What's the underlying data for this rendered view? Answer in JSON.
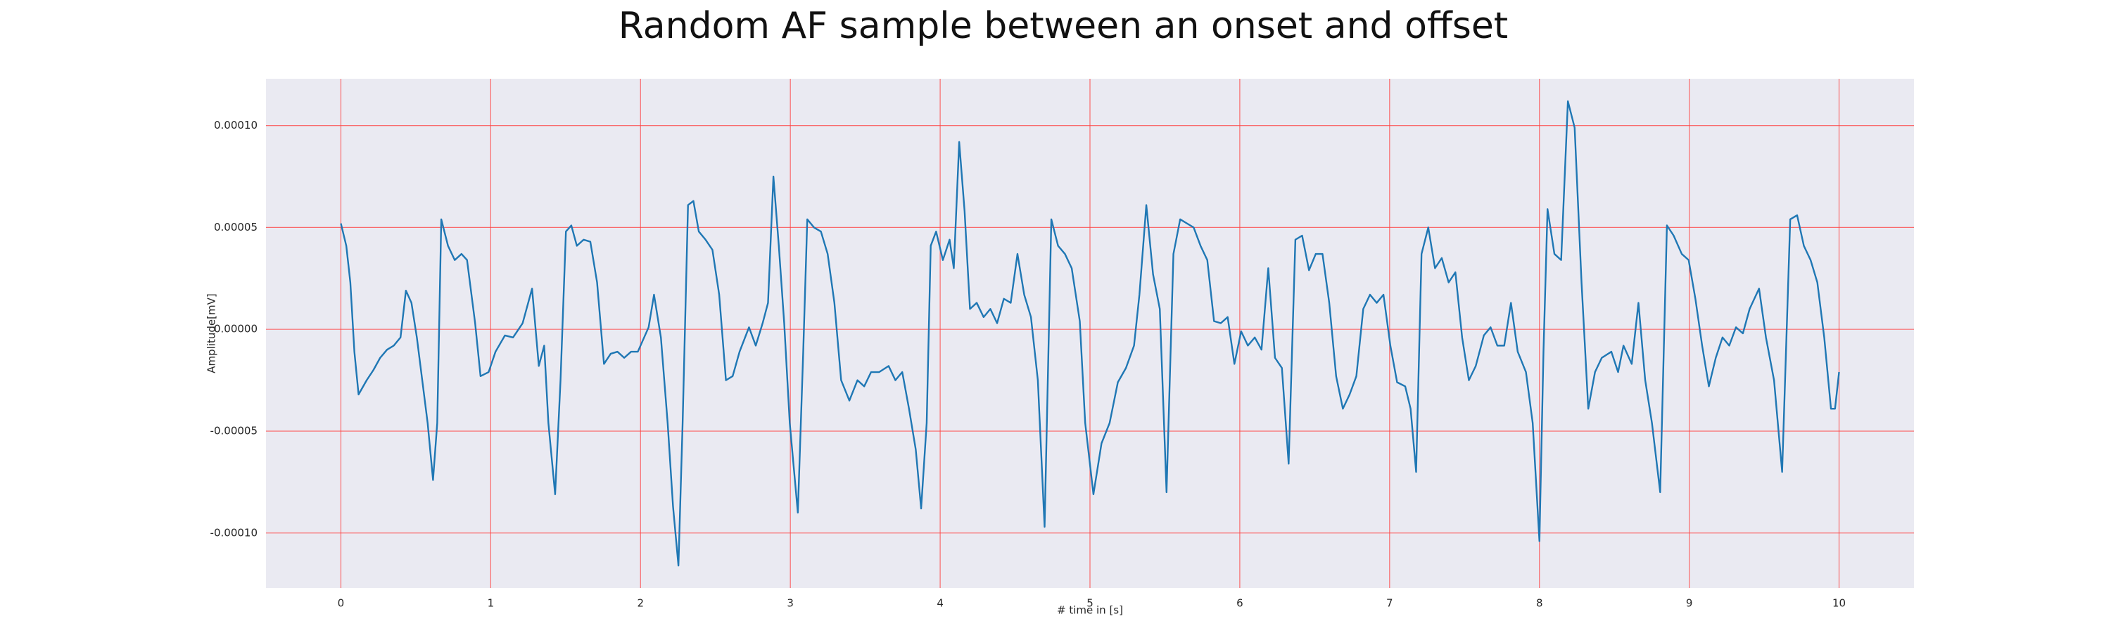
{
  "chart_data": {
    "type": "line",
    "title": "Random AF sample between an onset and offset",
    "xlabel": "# time in [s]",
    "ylabel": "Amplitude[mV]",
    "color": "#1f77b4",
    "grid": true,
    "xlim": [
      -0.5,
      10.5
    ],
    "ylim": [
      -0.000127,
      0.000123
    ],
    "xticks": [
      0,
      1,
      2,
      3,
      4,
      5,
      6,
      7,
      8,
      9,
      10
    ],
    "yticks": [
      {
        "value": -0.0001,
        "label": "-0.00010"
      },
      -5e-05,
      {
        "value": 0,
        "label": "0.00000"
      },
      5e-05,
      {
        "value": 0.0001,
        "label": "0.00010"
      }
    ],
    "x": [
      0,
      0.036,
      0.063,
      0.09,
      0.118,
      0.172,
      0.217,
      0.262,
      0.308,
      0.353,
      0.398,
      0.434,
      0.471,
      0.507,
      0.543,
      0.579,
      0.615,
      0.643,
      0.67,
      0.715,
      0.76,
      0.805,
      0.842,
      0.896,
      0.932,
      0.986,
      1.032,
      1.095,
      1.149,
      1.213,
      1.276,
      1.321,
      1.357,
      1.385,
      1.43,
      1.466,
      1.502,
      1.538,
      1.575,
      1.62,
      1.665,
      1.71,
      1.756,
      1.801,
      1.846,
      1.891,
      1.937,
      1.982,
      2.054,
      2.09,
      2.136,
      2.181,
      2.217,
      2.253,
      2.281,
      2.317,
      2.353,
      2.389,
      2.434,
      2.48,
      2.525,
      2.57,
      2.615,
      2.661,
      2.724,
      2.769,
      2.815,
      2.851,
      2.887,
      2.923,
      2.959,
      2.996,
      3.05,
      3.086,
      3.113,
      3.158,
      3.204,
      3.249,
      3.294,
      3.339,
      3.394,
      3.448,
      3.493,
      3.539,
      3.593,
      3.656,
      3.701,
      3.747,
      3.792,
      3.837,
      3.873,
      3.91,
      3.937,
      3.973,
      4.018,
      4.063,
      4.091,
      4.127,
      4.163,
      4.199,
      4.244,
      4.29,
      4.335,
      4.38,
      4.425,
      4.471,
      4.516,
      4.561,
      4.606,
      4.652,
      4.697,
      4.742,
      4.787,
      4.833,
      4.878,
      4.932,
      4.968,
      5.023,
      5.077,
      5.131,
      5.186,
      5.24,
      5.294,
      5.33,
      5.376,
      5.421,
      5.466,
      5.511,
      5.557,
      5.602,
      5.647,
      5.692,
      5.738,
      5.783,
      5.828,
      5.873,
      5.919,
      5.964,
      6.009,
      6.054,
      6.1,
      6.145,
      6.19,
      6.235,
      6.281,
      6.326,
      6.371,
      6.416,
      6.462,
      6.507,
      6.552,
      6.597,
      6.643,
      6.688,
      6.733,
      6.778,
      6.824,
      6.869,
      6.914,
      6.959,
      7.005,
      7.05,
      7.104,
      7.14,
      7.177,
      7.213,
      7.258,
      7.303,
      7.348,
      7.394,
      7.439,
      7.484,
      7.529,
      7.575,
      7.629,
      7.674,
      7.719,
      7.765,
      7.81,
      7.855,
      7.91,
      7.955,
      8.0,
      8.027,
      8.054,
      8.1,
      8.145,
      8.19,
      8.235,
      8.281,
      8.326,
      8.371,
      8.416,
      8.48,
      8.525,
      8.561,
      8.616,
      8.661,
      8.706,
      8.751,
      8.806,
      8.851,
      8.896,
      8.95,
      8.996,
      9.041,
      9.086,
      9.131,
      9.177,
      9.222,
      9.267,
      9.312,
      9.358,
      9.403,
      9.466,
      9.512,
      9.566,
      9.62,
      9.674,
      9.72,
      9.765,
      9.81,
      9.855,
      9.901,
      9.946,
      9.973,
      10.0
    ],
    "values": [
      5.2e-05,
      4.1e-05,
      2.3e-05,
      -1.1e-05,
      -3.2e-05,
      -2.5e-05,
      -2e-05,
      -1.4e-05,
      -1e-05,
      -8e-06,
      -4e-06,
      1.9e-05,
      1.3e-05,
      -4e-06,
      -2.5e-05,
      -4.6e-05,
      -7.4e-05,
      -4.6e-05,
      5.4e-05,
      4.1e-05,
      3.4e-05,
      3.7e-05,
      3.4e-05,
      3e-06,
      -2.3e-05,
      -2.1e-05,
      -1.1e-05,
      -3e-06,
      -4e-06,
      3e-06,
      2e-05,
      -1.8e-05,
      -8e-06,
      -4.6e-05,
      -8.1e-05,
      -2.5e-05,
      4.8e-05,
      5.1e-05,
      4.1e-05,
      4.4e-05,
      4.3e-05,
      2.3e-05,
      -1.7e-05,
      -1.2e-05,
      -1.1e-05,
      -1.4e-05,
      -1.1e-05,
      -1.1e-05,
      1e-06,
      1.7e-05,
      -4e-06,
      -4.6e-05,
      -8.7e-05,
      -0.000116,
      -4.6e-05,
      6.1e-05,
      6.3e-05,
      4.8e-05,
      4.4e-05,
      3.9e-05,
      1.7e-05,
      -2.5e-05,
      -2.3e-05,
      -1.1e-05,
      1e-06,
      -8e-06,
      3e-06,
      1.3e-05,
      7.5e-05,
      4.1e-05,
      3e-06,
      -4.6e-05,
      -9e-05,
      -1.1e-05,
      5.4e-05,
      5e-05,
      4.8e-05,
      3.7e-05,
      1.3e-05,
      -2.5e-05,
      -3.5e-05,
      -2.5e-05,
      -2.8e-05,
      -2.1e-05,
      -2.1e-05,
      -1.8e-05,
      -2.5e-05,
      -2.1e-05,
      -3.9e-05,
      -5.9e-05,
      -8.8e-05,
      -4.6e-05,
      4.1e-05,
      4.8e-05,
      3.4e-05,
      4.4e-05,
      3e-05,
      9.2e-05,
      5.8e-05,
      1e-05,
      1.3e-05,
      6e-06,
      1e-05,
      3e-06,
      1.5e-05,
      1.3e-05,
      3.7e-05,
      1.7e-05,
      6e-06,
      -2.5e-05,
      -9.7e-05,
      5.4e-05,
      4.1e-05,
      3.7e-05,
      3e-05,
      4e-06,
      -4.6e-05,
      -8.1e-05,
      -5.6e-05,
      -4.6e-05,
      -2.6e-05,
      -1.9e-05,
      -8e-06,
      1.7e-05,
      6.1e-05,
      2.7e-05,
      1e-05,
      -8e-05,
      3.7e-05,
      5.4e-05,
      5.2e-05,
      5e-05,
      4.1e-05,
      3.4e-05,
      4e-06,
      3e-06,
      6e-06,
      -1.7e-05,
      -1e-06,
      -8e-06,
      -4e-06,
      -1e-05,
      3e-05,
      -1.4e-05,
      -1.9e-05,
      -6.6e-05,
      4.4e-05,
      4.6e-05,
      2.9e-05,
      3.7e-05,
      3.7e-05,
      1.3e-05,
      -2.3e-05,
      -3.9e-05,
      -3.2e-05,
      -2.3e-05,
      1e-05,
      1.7e-05,
      1.3e-05,
      1.7e-05,
      -8e-06,
      -2.6e-05,
      -2.8e-05,
      -3.9e-05,
      -7e-05,
      3.7e-05,
      5e-05,
      3e-05,
      3.5e-05,
      2.3e-05,
      2.8e-05,
      -4e-06,
      -2.5e-05,
      -1.8e-05,
      -3e-06,
      1e-06,
      -8e-06,
      -8e-06,
      1.3e-05,
      -1.1e-05,
      -2.1e-05,
      -4.6e-05,
      -0.000104,
      -1.1e-05,
      5.9e-05,
      3.7e-05,
      3.4e-05,
      0.000112,
      9.9e-05,
      2.3e-05,
      -3.9e-05,
      -2.1e-05,
      -1.4e-05,
      -1.1e-05,
      -2.1e-05,
      -8e-06,
      -1.7e-05,
      1.3e-05,
      -2.5e-05,
      -4.6e-05,
      -8e-05,
      5.1e-05,
      4.6e-05,
      3.7e-05,
      3.4e-05,
      1.5e-05,
      -8e-06,
      -2.8e-05,
      -1.4e-05,
      -4e-06,
      -8e-06,
      1e-06,
      -2e-06,
      1e-05,
      2e-05,
      -4e-06,
      -2.5e-05,
      -7e-05,
      5.4e-05,
      5.6e-05,
      4.1e-05,
      3.4e-05,
      2.3e-05,
      -4e-06,
      -3.9e-05,
      -3.9e-05,
      -2.1e-05
    ]
  }
}
